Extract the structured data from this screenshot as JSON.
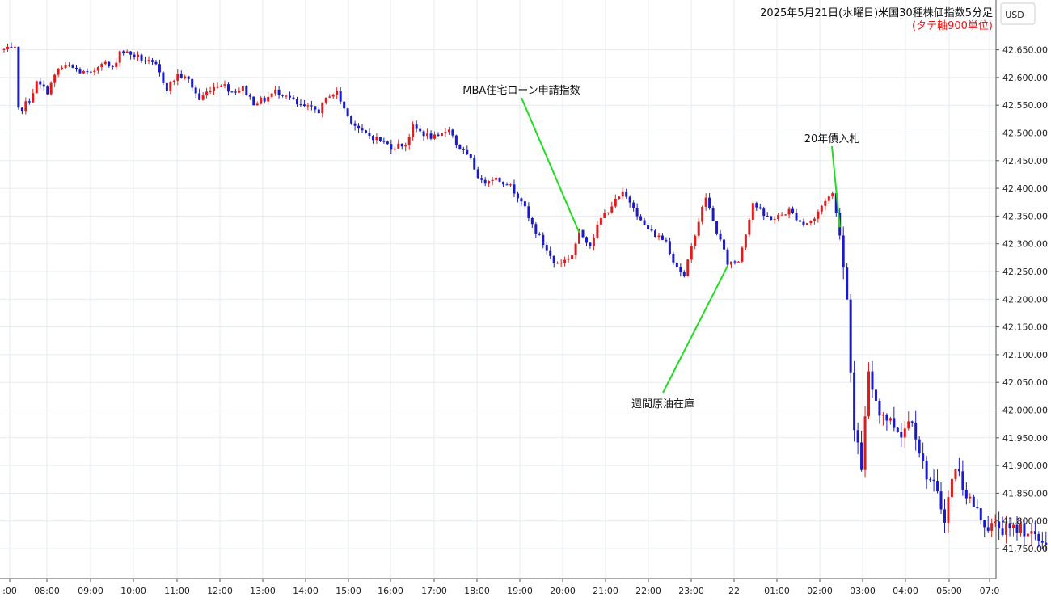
{
  "chart_data": {
    "type": "candlestick",
    "title": "2025年5月21日(水曜日)米国30種株価指数5分足",
    "subtitle": "(タテ軸900単位)",
    "currency": "USD",
    "ylim": [
      41700,
      42700
    ],
    "y_ticks": [
      "41,750.00",
      "41,800.00",
      "41,850.00",
      "41,900.00",
      "41,950.00",
      "42,000.00",
      "42,050.00",
      "42,100.00",
      "42,150.00",
      "42,200.00",
      "42,250.00",
      "42,300.00",
      "42,350.00",
      "42,400.00",
      "42,450.00",
      "42,500.00",
      "42,550.00",
      "42,600.00",
      "42,650.00"
    ],
    "x_ticks": [
      ":00",
      "08:00",
      "09:00",
      "10:00",
      "11:00",
      "12:00",
      "13:00",
      "14:00",
      "15:00",
      "16:00",
      "17:00",
      "18:00",
      "19:00",
      "20:00",
      "21:00",
      "22:00",
      "23:00",
      "22",
      "01:00",
      "02:00",
      "03:00",
      "04:00",
      "05:00",
      "07:0"
    ],
    "colors": {
      "up": "#e11b1b",
      "down": "#1a1ac8",
      "grid": "#e6ecf1",
      "annotation_line": "#22dd22",
      "subtitle": "#e11b1b"
    },
    "annotations": [
      {
        "label": "MBA住宅ローン申請指数",
        "time": "19:55",
        "value": 42320
      },
      {
        "label": "週間原油在庫",
        "time": "23:20",
        "value": 42260
      },
      {
        "label": "20年債入札",
        "time": "01:55",
        "value": 42330
      }
    ],
    "path": [
      [
        "07:00",
        42650
      ],
      [
        "07:05",
        42540
      ],
      [
        "07:10",
        42545
      ],
      [
        "07:20",
        42560
      ],
      [
        "07:30",
        42590
      ],
      [
        "07:45",
        42575
      ],
      [
        "08:00",
        42615
      ],
      [
        "08:15",
        42620
      ],
      [
        "08:30",
        42610
      ],
      [
        "08:45",
        42605
      ],
      [
        "09:00",
        42630
      ],
      [
        "09:15",
        42615
      ],
      [
        "09:25",
        42648
      ],
      [
        "09:45",
        42640
      ],
      [
        "10:00",
        42630
      ],
      [
        "10:15",
        42620
      ],
      [
        "10:30",
        42580
      ],
      [
        "10:45",
        42605
      ],
      [
        "11:00",
        42595
      ],
      [
        "11:15",
        42560
      ],
      [
        "11:30",
        42580
      ],
      [
        "11:45",
        42590
      ],
      [
        "12:00",
        42575
      ],
      [
        "12:15",
        42580
      ],
      [
        "12:30",
        42555
      ],
      [
        "12:45",
        42560
      ],
      [
        "13:00",
        42575
      ],
      [
        "13:15",
        42570
      ],
      [
        "13:30",
        42550
      ],
      [
        "13:45",
        42545
      ],
      [
        "14:00",
        42540
      ],
      [
        "14:15",
        42570
      ],
      [
        "14:25",
        42572
      ],
      [
        "14:40",
        42530
      ],
      [
        "15:00",
        42500
      ],
      [
        "15:20",
        42490
      ],
      [
        "15:40",
        42475
      ],
      [
        "16:00",
        42480
      ],
      [
        "16:10",
        42510
      ],
      [
        "16:30",
        42495
      ],
      [
        "16:45",
        42490
      ],
      [
        "17:00",
        42510
      ],
      [
        "17:10",
        42480
      ],
      [
        "17:30",
        42450
      ],
      [
        "17:45",
        42410
      ],
      [
        "18:00",
        42420
      ],
      [
        "18:20",
        42410
      ],
      [
        "18:40",
        42380
      ],
      [
        "18:50",
        42345
      ],
      [
        "19:10",
        42300
      ],
      [
        "19:25",
        42265
      ],
      [
        "19:40",
        42270
      ],
      [
        "19:50",
        42280
      ],
      [
        "20:00",
        42320
      ],
      [
        "20:15",
        42300
      ],
      [
        "20:30",
        42345
      ],
      [
        "20:45",
        42370
      ],
      [
        "21:00",
        42390
      ],
      [
        "21:15",
        42370
      ],
      [
        "21:25",
        42340
      ],
      [
        "21:40",
        42320
      ],
      [
        "22:00",
        42305
      ],
      [
        "22:10",
        42270
      ],
      [
        "22:25",
        42240
      ],
      [
        "22:40",
        42320
      ],
      [
        "22:55",
        42385
      ],
      [
        "23:05",
        42340
      ],
      [
        "23:15",
        42305
      ],
      [
        "23:25",
        42265
      ],
      [
        "23:40",
        42270
      ],
      [
        "23:50",
        42320
      ],
      [
        "00:00",
        42375
      ],
      [
        "00:15",
        42350
      ],
      [
        "00:30",
        42345
      ],
      [
        "00:50",
        42360
      ],
      [
        "01:10",
        42335
      ],
      [
        "01:25",
        42345
      ],
      [
        "01:40",
        42380
      ],
      [
        "01:50",
        42390
      ],
      [
        "02:00",
        42320
      ],
      [
        "02:10",
        42200
      ],
      [
        "02:20",
        41960
      ],
      [
        "02:30",
        41900
      ],
      [
        "02:40",
        42060
      ],
      [
        "02:55",
        42000
      ],
      [
        "03:10",
        41980
      ],
      [
        "03:25",
        41960
      ],
      [
        "03:40",
        41990
      ],
      [
        "03:55",
        41900
      ],
      [
        "04:10",
        41860
      ],
      [
        "04:25",
        41810
      ],
      [
        "04:40",
        41900
      ],
      [
        "04:55",
        41850
      ],
      [
        "05:10",
        41815
      ],
      [
        "05:25",
        41790
      ],
      [
        "05:40",
        41790
      ],
      [
        "05:55",
        41780
      ],
      [
        "06:10",
        41790
      ],
      [
        "06:25",
        41775
      ],
      [
        "06:40",
        41800
      ],
      [
        "06:50",
        41785
      ],
      [
        "07:00",
        41765
      ]
    ]
  }
}
